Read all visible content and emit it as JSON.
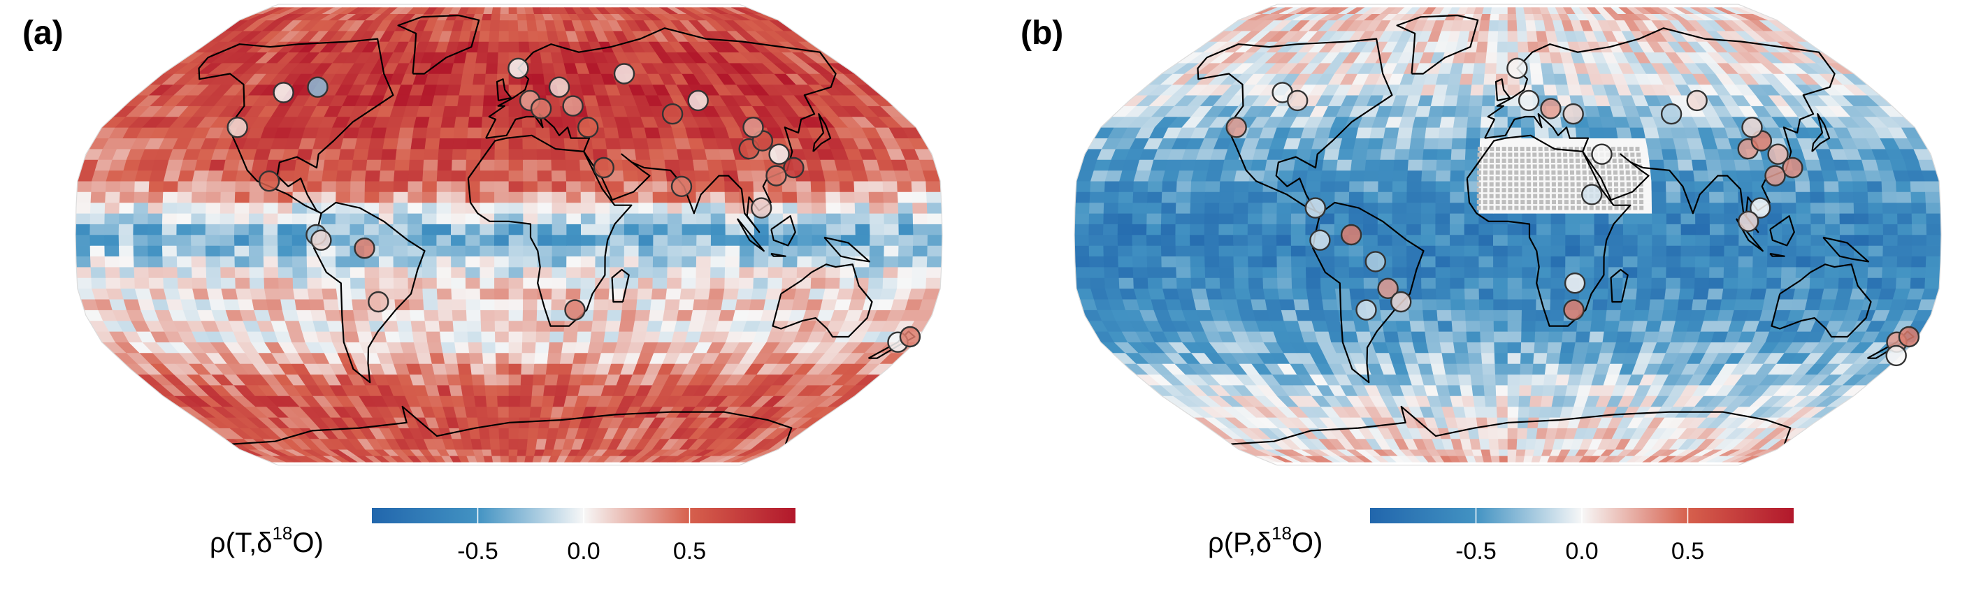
{
  "panels": [
    {
      "label": "(a)",
      "colorbar_label_main": "ρ(T,δ",
      "colorbar_label_sup": "18",
      "colorbar_label_end": "O)"
    },
    {
      "label": "(b)",
      "colorbar_label_main": "ρ(P,δ",
      "colorbar_label_sup": "18",
      "colorbar_label_end": "O)"
    }
  ],
  "colors": {
    "neg": "#2166ac",
    "mid": "#f7f7f7",
    "pos": "#b2182b",
    "coast": "#000000",
    "marker_edge": "#333333",
    "missing": "#bdbdbd"
  },
  "chart_data": [
    {
      "type": "heatmap",
      "title": "",
      "projection": "Robinson",
      "variable": "ρ(T,δ18O)",
      "colorbar": {
        "min": -1.0,
        "max": 1.0,
        "ticks": [
          -0.5,
          0.0,
          0.5
        ],
        "tick_labels": [
          "-0.5",
          "0.0",
          "0.5"
        ],
        "colormap": "RdBu_r"
      },
      "zonal_pattern_lat": [
        -90,
        -60,
        -40,
        -20,
        0,
        20,
        40,
        60,
        90
      ],
      "zonal_pattern_rho": [
        0.5,
        0.6,
        0.1,
        0.1,
        -0.4,
        0.4,
        0.55,
        0.65,
        0.55
      ],
      "stations": [
        {
          "lon": -110,
          "lat": 53,
          "rho": 0.0
        },
        {
          "lon": -95,
          "lat": 55,
          "rho": -0.3
        },
        {
          "lon": -120,
          "lat": 40,
          "rho": 0.1
        },
        {
          "lon": -100,
          "lat": 20,
          "rho": 0.5
        },
        {
          "lon": -80,
          "lat": 0,
          "rho": -0.3
        },
        {
          "lon": -60,
          "lat": -5,
          "rho": 0.4
        },
        {
          "lon": -55,
          "lat": -25,
          "rho": 0.2
        },
        {
          "lon": -78,
          "lat": -2,
          "rho": 0.1
        },
        {
          "lon": 5,
          "lat": 62,
          "rho": 0.0
        },
        {
          "lon": 10,
          "lat": 50,
          "rho": 0.3
        },
        {
          "lon": 15,
          "lat": 47,
          "rho": 0.4
        },
        {
          "lon": 25,
          "lat": 55,
          "rho": 0.1
        },
        {
          "lon": 30,
          "lat": 48,
          "rho": 0.3
        },
        {
          "lon": 35,
          "lat": 40,
          "rho": 0.5
        },
        {
          "lon": 40,
          "lat": 25,
          "rho": 0.5
        },
        {
          "lon": 60,
          "lat": 60,
          "rho": 0.05
        },
        {
          "lon": 75,
          "lat": 45,
          "rho": 0.6
        },
        {
          "lon": 90,
          "lat": 50,
          "rho": 0.05
        },
        {
          "lon": 72,
          "lat": 18,
          "rho": 0.4
        },
        {
          "lon": 28,
          "lat": -28,
          "rho": 0.4
        },
        {
          "lon": 103,
          "lat": 32,
          "rho": 0.6
        },
        {
          "lon": 110,
          "lat": 35,
          "rho": 0.6
        },
        {
          "lon": 115,
          "lat": 30,
          "rho": 0.0
        },
        {
          "lon": 120,
          "lat": 25,
          "rho": 0.75
        },
        {
          "lon": 112,
          "lat": 22,
          "rho": 0.4
        },
        {
          "lon": 108,
          "lat": 40,
          "rho": 0.3
        },
        {
          "lon": 105,
          "lat": 10,
          "rho": 0.15
        },
        {
          "lon": 172,
          "lat": -40,
          "rho": 0.0
        },
        {
          "lon": 176,
          "lat": -38,
          "rho": 0.4
        }
      ]
    },
    {
      "type": "heatmap",
      "title": "",
      "projection": "Robinson",
      "variable": "ρ(P,δ18O)",
      "colorbar": {
        "min": -1.0,
        "max": 1.0,
        "ticks": [
          -0.5,
          0.0,
          0.5
        ],
        "tick_labels": [
          "-0.5",
          "0.0",
          "0.5"
        ],
        "colormap": "RdBu_r"
      },
      "zonal_pattern_lat": [
        -90,
        -60,
        -40,
        -20,
        0,
        20,
        40,
        60,
        90
      ],
      "zonal_pattern_rho": [
        0.2,
        -0.1,
        -0.4,
        -0.6,
        -0.7,
        -0.5,
        -0.3,
        0.0,
        0.15
      ],
      "missing_region": "Sahara / Arabia (hatched grey)",
      "stations": [
        {
          "lon": -110,
          "lat": 53,
          "rho": 0.0
        },
        {
          "lon": -100,
          "lat": 50,
          "rho": 0.1
        },
        {
          "lon": -120,
          "lat": 40,
          "rho": 0.3
        },
        {
          "lon": -80,
          "lat": 10,
          "rho": -0.1
        },
        {
          "lon": -65,
          "lat": 0,
          "rho": 0.4
        },
        {
          "lon": -78,
          "lat": -2,
          "rho": -0.1
        },
        {
          "lon": -55,
          "lat": -10,
          "rho": -0.2
        },
        {
          "lon": -50,
          "lat": -20,
          "rho": 0.3
        },
        {
          "lon": -45,
          "lat": -25,
          "rho": 0.1
        },
        {
          "lon": -60,
          "lat": -28,
          "rho": -0.1
        },
        {
          "lon": 5,
          "lat": 62,
          "rho": 0.0
        },
        {
          "lon": 10,
          "lat": 50,
          "rho": 0.0
        },
        {
          "lon": 20,
          "lat": 47,
          "rho": 0.3
        },
        {
          "lon": 30,
          "lat": 45,
          "rho": 0.1
        },
        {
          "lon": 40,
          "lat": 30,
          "rho": 0.0
        },
        {
          "lon": 35,
          "lat": 15,
          "rho": -0.1
        },
        {
          "lon": 28,
          "lat": -18,
          "rho": 0.0
        },
        {
          "lon": 28,
          "lat": -28,
          "rho": 0.4
        },
        {
          "lon": 75,
          "lat": 45,
          "rho": -0.2
        },
        {
          "lon": 90,
          "lat": 50,
          "rho": 0.1
        },
        {
          "lon": 103,
          "lat": 32,
          "rho": 0.3
        },
        {
          "lon": 110,
          "lat": 35,
          "rho": 0.4
        },
        {
          "lon": 115,
          "lat": 30,
          "rho": 0.2
        },
        {
          "lon": 120,
          "lat": 25,
          "rho": 0.35
        },
        {
          "lon": 112,
          "lat": 22,
          "rho": 0.3
        },
        {
          "lon": 108,
          "lat": 40,
          "rho": 0.1
        },
        {
          "lon": 105,
          "lat": 10,
          "rho": 0.0
        },
        {
          "lon": 100,
          "lat": 5,
          "rho": 0.1
        },
        {
          "lon": 172,
          "lat": -40,
          "rho": 0.3
        },
        {
          "lon": 176,
          "lat": -38,
          "rho": 0.4
        },
        {
          "lon": 178,
          "lat": -45,
          "rho": 0.0
        }
      ]
    }
  ]
}
